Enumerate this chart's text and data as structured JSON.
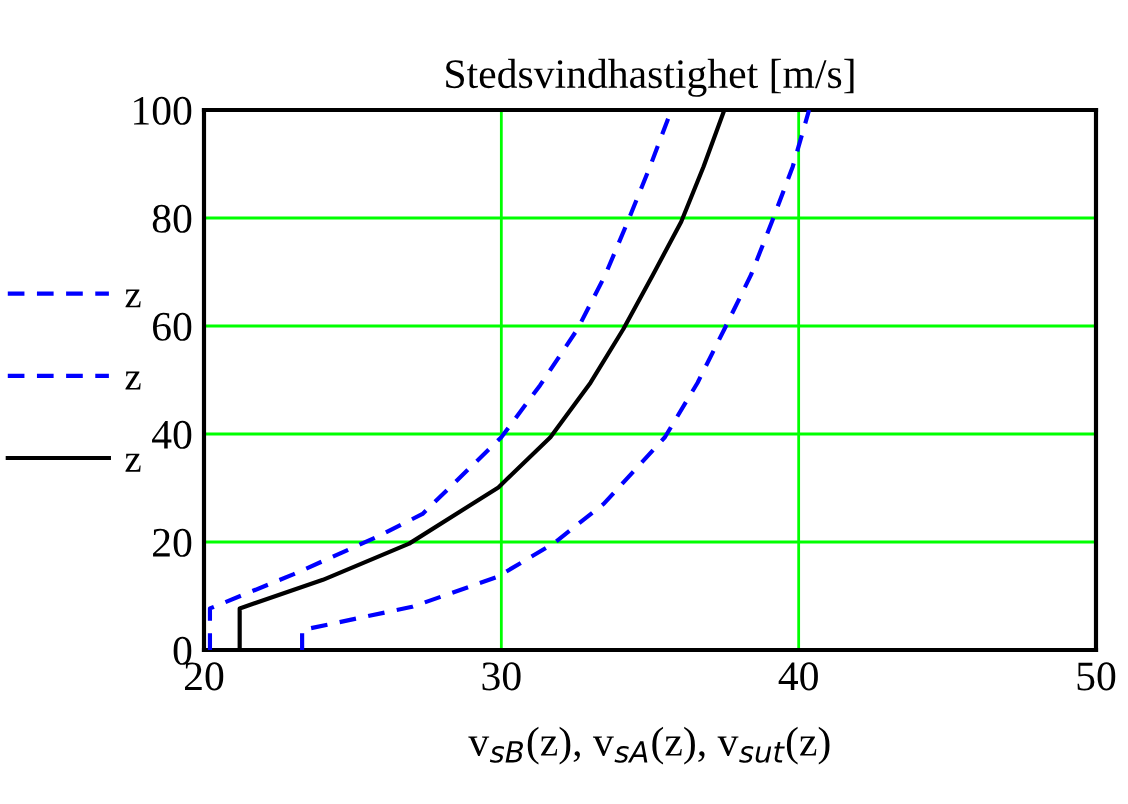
{
  "chart_data": {
    "type": "line",
    "title": "Stedsvindhastighet [m/s]",
    "xlabel": "v$_{sB}$(z), v$_{sA}$(z), v$_{sut}$(z)",
    "xlim": [
      20,
      50
    ],
    "xticks": [
      20,
      30,
      40,
      50
    ],
    "ylim": [
      0,
      100
    ],
    "yticks": [
      0,
      20,
      40,
      60,
      80,
      100
    ],
    "grid": true,
    "legend": "left",
    "series": [
      {
        "name": "z",
        "color": "#0000ff",
        "line_style": "dashed",
        "x": [
          20.2,
          20.2,
          23.0,
          25.8,
          27.35,
          30.0,
          31.3,
          32.56,
          33.5,
          34.25,
          35.0,
          35.72
        ],
        "values": [
          0,
          7.7,
          14.0,
          20.9,
          25.2,
          39.4,
          49.0,
          59.4,
          69.5,
          79.3,
          89.5,
          100
        ]
      },
      {
        "name": "z",
        "color": "#0000ff",
        "line_style": "dashed",
        "x": [
          23.3,
          23.3,
          27.0,
          29.85,
          31.75,
          33.45,
          35.5,
          36.6,
          37.5,
          38.4,
          39.1,
          39.8,
          40.35
        ],
        "values": [
          0,
          3.7,
          8.0,
          13.5,
          19.7,
          27.1,
          39.4,
          49.5,
          59.4,
          69.5,
          79.3,
          89.5,
          100
        ]
      },
      {
        "name": "z",
        "color": "#000000",
        "line_style": "solid",
        "x": [
          21.2,
          21.2,
          24.0,
          26.9,
          29.9,
          31.65,
          33.0,
          34.1,
          35.1,
          36.05,
          36.8,
          37.5
        ],
        "values": [
          0,
          7.7,
          13.0,
          19.7,
          30.1,
          39.4,
          49.5,
          59.4,
          69.5,
          79.3,
          89.5,
          100
        ]
      }
    ]
  }
}
